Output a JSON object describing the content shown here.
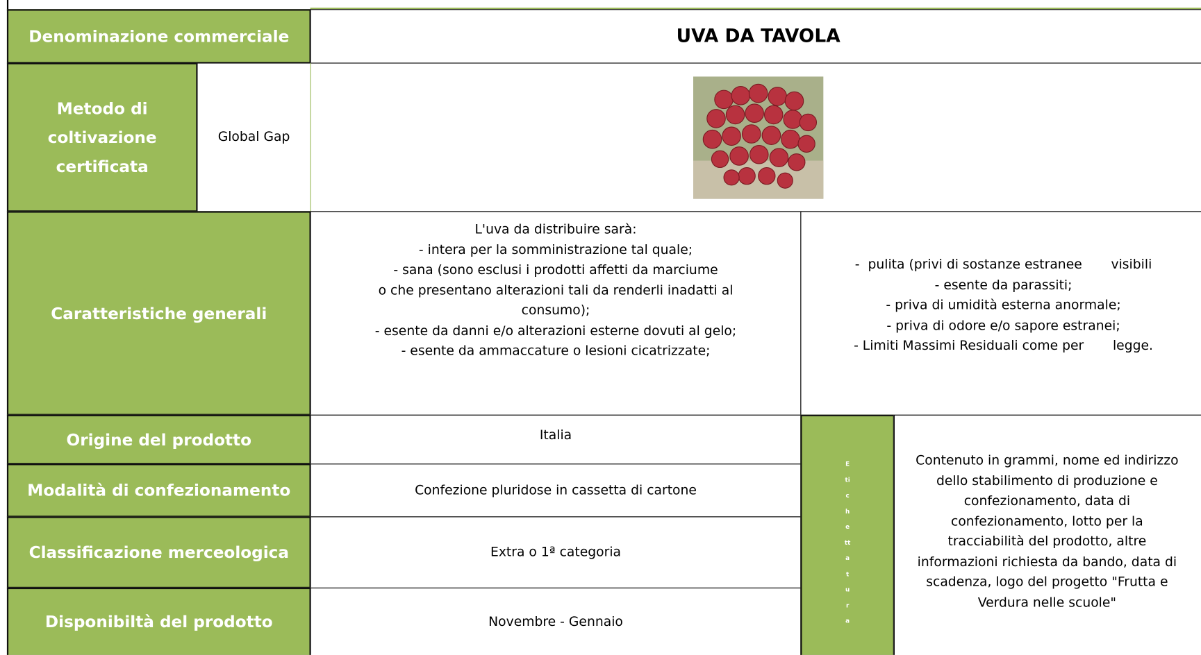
{
  "table": {
    "name_label": "Denominazione commerciale",
    "name_value": "UVA DA TAVOLA",
    "method_label": "Metodo di coltivazione certificata",
    "method_value": "Global Gap",
    "characteristics_label": "Caratteristiche generali",
    "characteristics_left": [
      "L'uva da distribuire sarà:",
      "- intera per la somministrazione tal quale;",
      "- sana (sono esclusi i prodotti affetti da marciume",
      "o che presentano alterazioni tali da renderli inadatti al",
      "consumo);",
      "- esente da danni e/o alterazioni esterne dovuti al gelo;",
      "- esente da ammaccature o lesioni cicatrizzate;"
    ],
    "characteristics_right": [
      "-  pulita (privi di sostanze estranee       visibili",
      "- esente da parassiti;",
      "- priva di umidità esterna anormale;",
      "- priva di odore e/o sapore estranei;",
      "- Limiti Massimi Residuali come per       legge."
    ],
    "origin_label": "Origine del prodotto",
    "origin_value": "Italia",
    "packaging_label": "Modalità di confezionamento",
    "packaging_value": "Confezione pluridose in cassetta di cartone",
    "class_label": "Classificazione merceologica",
    "class_value": "Extra o 1ª categoria",
    "availability_label": "Disponibiltà del prodotto",
    "availability_value": "Novembre - Gennaio",
    "labeling_label": "Etichettatura",
    "labeling_value": [
      "Contenuto in grammi, nome ed indirizzo",
      "dello stabilimento di produzione e",
      "confezionamento, data di",
      "confezionamento, lotto per la",
      "tracciabilità del prodotto, altre",
      "informazioni richiesta da bando, data di",
      "scadenza, logo del progetto \"Frutta e",
      "Verdura nelle scuole\""
    ]
  }
}
